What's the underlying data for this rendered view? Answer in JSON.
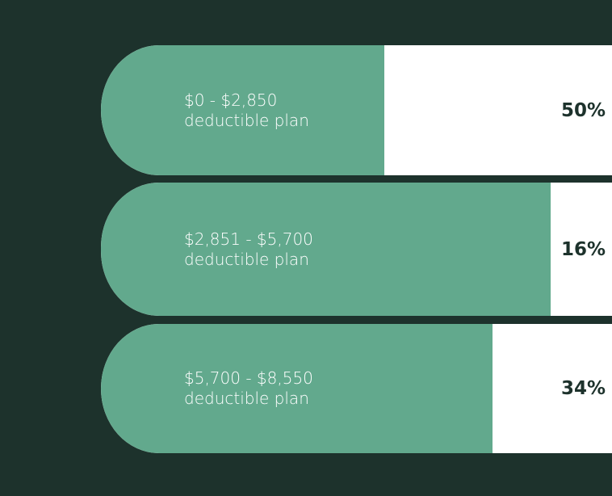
{
  "chart_data": {
    "type": "bar",
    "orientation": "horizontal",
    "categories": [
      "$0 - $2,850",
      "$2,851 - $5,700",
      "$5,700 - $8,550"
    ],
    "category_suffix": "deductible plan",
    "values": [
      50,
      16,
      34
    ],
    "value_labels": [
      "50%",
      "16%",
      "34%"
    ],
    "colors": {
      "background": "#1d322c",
      "bar": "#62a98d",
      "track": "#ffffff",
      "value_text": "#1d322c"
    }
  }
}
